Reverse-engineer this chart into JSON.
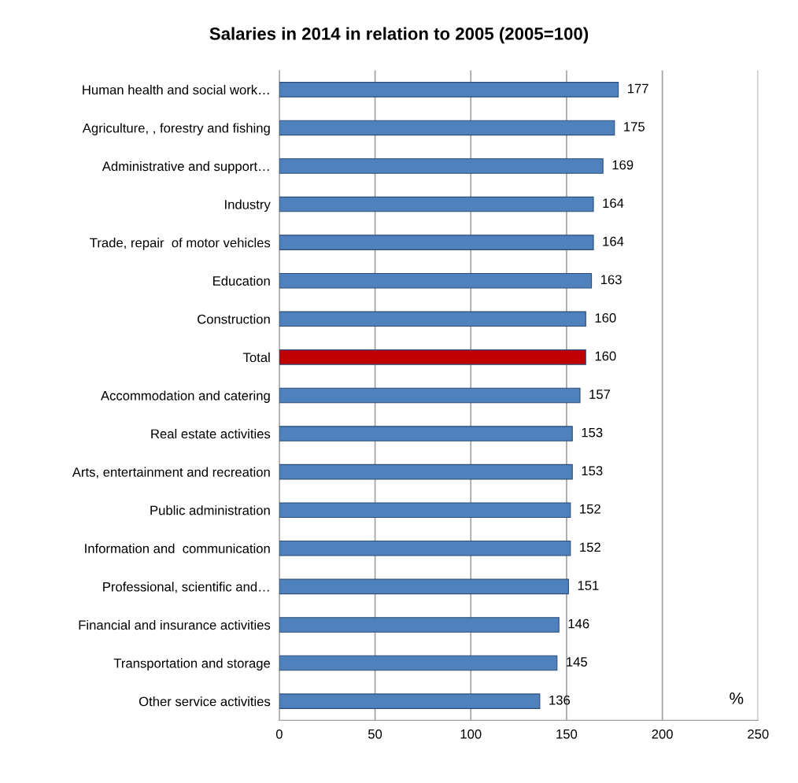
{
  "chart_data": {
    "type": "bar",
    "orientation": "horizontal",
    "title": "Salaries in 2014 in relation to 2005 (2005=100)",
    "categories": [
      "Human health and social work…",
      "Agriculture, , forestry and fishing",
      "Administrative and support…",
      "Industry",
      "Trade, repair  of motor vehicles",
      "Education",
      "Construction",
      "Total",
      "Accommodation and catering",
      "Real estate activities",
      "Arts, entertainment and recreation",
      "Public administration",
      "Information and  communication",
      "Professional, scientific and…",
      "Financial and insurance activities",
      "Transportation and storage",
      "Other service activities"
    ],
    "values": [
      177,
      175,
      169,
      164,
      164,
      163,
      160,
      160,
      157,
      153,
      153,
      152,
      152,
      151,
      146,
      145,
      136
    ],
    "colors": [
      "#4f81bd",
      "#4f81bd",
      "#4f81bd",
      "#4f81bd",
      "#4f81bd",
      "#4f81bd",
      "#4f81bd",
      "#c00000",
      "#4f81bd",
      "#4f81bd",
      "#4f81bd",
      "#4f81bd",
      "#4f81bd",
      "#4f81bd",
      "#4f81bd",
      "#4f81bd",
      "#4f81bd"
    ],
    "xlim": [
      0,
      250
    ],
    "xticks": [
      0,
      50,
      100,
      150,
      200,
      250
    ],
    "grid": "x",
    "data_labels": true,
    "annotations": [
      "%"
    ]
  }
}
